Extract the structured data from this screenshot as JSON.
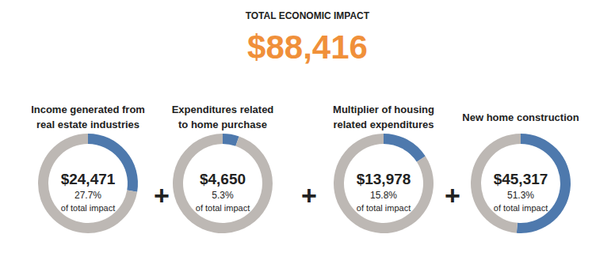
{
  "title": "TOTAL ECONOMIC IMPACT",
  "total": {
    "value": 88416,
    "label": "$88,416",
    "color": "#f0903a"
  },
  "operator": "+",
  "chart_data": [
    {
      "type": "pie",
      "title": "Income generated from\nreal estate industries",
      "amount": {
        "value": 24471,
        "label": "$24,471"
      },
      "values": [
        27.7,
        72.3
      ],
      "value_labels": [
        "27.7%",
        null
      ],
      "annotation": "of total impact",
      "colors": [
        "#4e79ad",
        "#bdb8b4"
      ]
    },
    {
      "type": "pie",
      "title": "Expenditures related\nto home purchase",
      "amount": {
        "value": 4650,
        "label": "$4,650"
      },
      "values": [
        5.3,
        94.7
      ],
      "value_labels": [
        "5.3%",
        null
      ],
      "annotation": "of total impact",
      "colors": [
        "#4e79ad",
        "#bdb8b4"
      ]
    },
    {
      "type": "pie",
      "title": "Multiplier of housing\nrelated expenditures",
      "amount": {
        "value": 13978,
        "label": "$13,978"
      },
      "values": [
        15.8,
        84.2
      ],
      "value_labels": [
        "15.8%",
        null
      ],
      "annotation": "of total impact",
      "colors": [
        "#4e79ad",
        "#bdb8b4"
      ]
    },
    {
      "type": "pie",
      "title": "New home construction",
      "amount": {
        "value": 45317,
        "label": "$45,317"
      },
      "values": [
        51.3,
        48.7
      ],
      "value_labels": [
        "51.3%",
        null
      ],
      "annotation": "of total impact",
      "colors": [
        "#4e79ad",
        "#bdb8b4"
      ]
    }
  ]
}
